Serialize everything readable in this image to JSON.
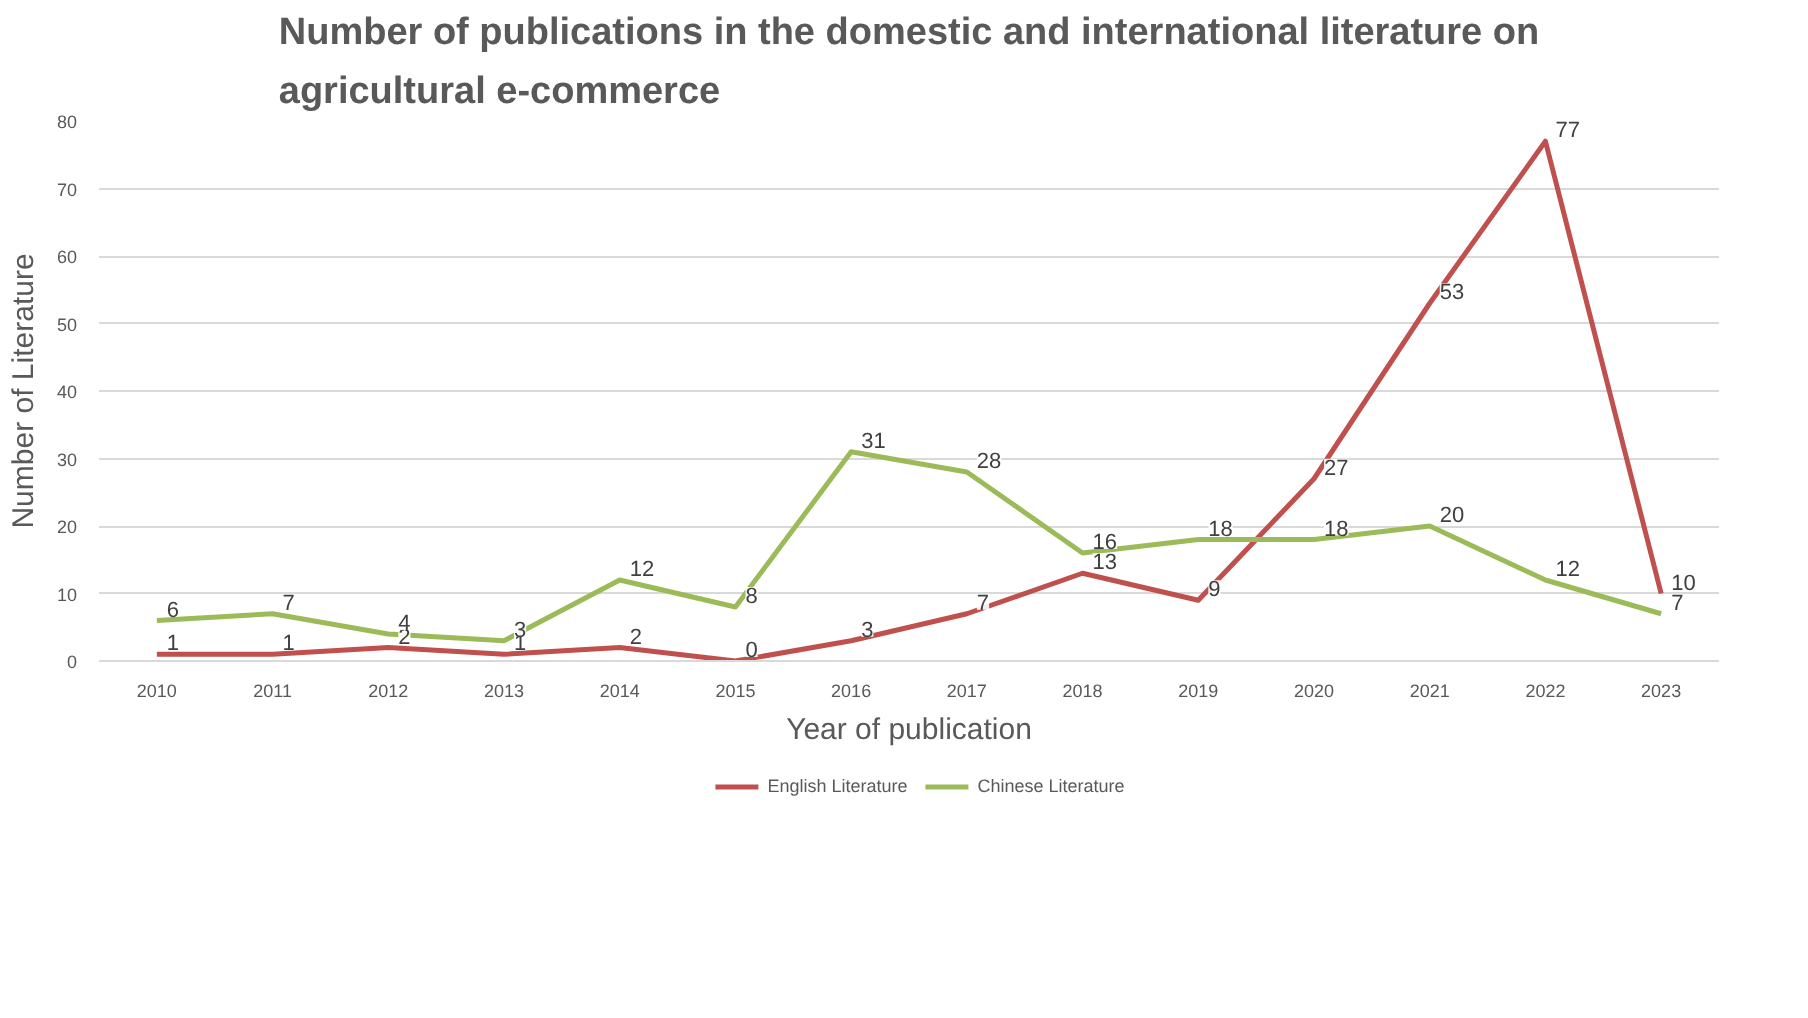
{
  "chart_data": {
    "type": "line",
    "title": "Number of publications in the domestic and international literature on agricultural e-commerce",
    "xlabel": "Year of publication",
    "ylabel": "Number of Literature",
    "categories": [
      "2010",
      "2011",
      "2012",
      "2013",
      "2014",
      "2015",
      "2016",
      "2017",
      "2018",
      "2019",
      "2020",
      "2021",
      "2022",
      "2023"
    ],
    "series": [
      {
        "name": "English Literature",
        "color": "#c0504d",
        "values": [
          1,
          1,
          2,
          1,
          2,
          0,
          3,
          7,
          13,
          9,
          27,
          53,
          77,
          10
        ]
      },
      {
        "name": "Chinese Literature",
        "color": "#9bbb59",
        "values": [
          6,
          7,
          4,
          3,
          12,
          8,
          31,
          28,
          16,
          18,
          18,
          20,
          12,
          7
        ]
      }
    ],
    "ylim": [
      0,
      80
    ],
    "yticks": [
      0,
      10,
      20,
      30,
      40,
      50,
      60,
      70,
      80
    ],
    "grid": "y",
    "legend": "bottom",
    "data_labels": true,
    "marker": "none",
    "line_style": "solid"
  }
}
